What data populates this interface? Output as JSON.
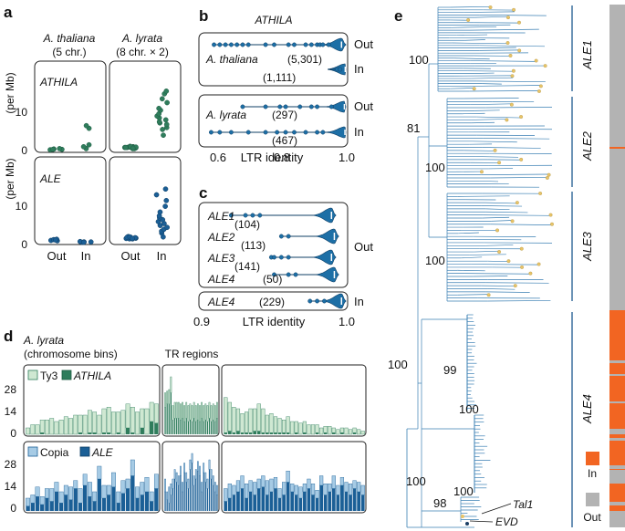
{
  "colors": {
    "dark_green": "#2f7d5c",
    "light_green": "#cfe8d2",
    "dark_blue": "#1b5f96",
    "light_blue": "#a6cbe5",
    "violin_blue": "#1d6fa6",
    "tree_blue": "#3a7fb3",
    "in_orange": "#f26522",
    "out_grey": "#b3b3b3"
  },
  "panel_a": {
    "label": "a",
    "col1_species": "A. thaliana",
    "col1_sub": "(5 chr.)",
    "col2_species": "A. lyrata",
    "col2_sub": "(8 chr. × 2)",
    "ylabel": "(per Mb)",
    "facet_top": "ATHILA",
    "facet_bottom": "ALE",
    "y_ticks_top": [
      "10",
      "0"
    ],
    "y_ticks_bottom": [
      "10",
      "0"
    ],
    "x_ticks": [
      "Out",
      "In"
    ]
  },
  "panel_b": {
    "label": "b",
    "title": "ATHILA",
    "species_top": "A. thaliana",
    "species_bottom": "A. lyrata",
    "counts": [
      "(5,301)",
      "(1,111)",
      "(297)",
      "(467)"
    ],
    "row_labels": [
      "Out",
      "In",
      "Out",
      "In"
    ],
    "x_ticks": [
      "0.6",
      "0.8",
      "1.0"
    ],
    "xlabel": "LTR identity"
  },
  "panel_c": {
    "label": "c",
    "families": [
      "ALE1",
      "ALE2",
      "ALE3",
      "ALE4"
    ],
    "counts": [
      "(104)",
      "(113)",
      "(141)",
      "(50)"
    ],
    "group_out": "Out",
    "in_family": "ALE4",
    "in_count": "(229)",
    "group_in": "In",
    "x_ticks": [
      "0.9",
      "1.0"
    ],
    "xlabel": "LTR identity"
  },
  "panel_d": {
    "label": "d",
    "species": "A. lyrata",
    "subtitle": "(chromosome bins)",
    "tr_label": "TR regions",
    "top_legend": [
      "Ty3",
      "ATHILA"
    ],
    "bottom_legend": [
      "Copia",
      "ALE"
    ],
    "y_ticks_top": [
      "28",
      "14",
      "0"
    ],
    "y_ticks_bottom": [
      "28",
      "14",
      "0"
    ]
  },
  "panel_e": {
    "label": "e",
    "clades": [
      "ALE1",
      "ALE2",
      "ALE3",
      "ALE4"
    ],
    "bootstrap": [
      "100",
      "81",
      "100",
      "100",
      "100",
      "99",
      "100",
      "100",
      "100",
      "98"
    ],
    "tips": [
      "Tal1",
      "EVD"
    ],
    "legend_in": "In",
    "legend_out": "Out"
  },
  "chart_data": [
    {
      "panel": "a",
      "type": "scatter",
      "facet": "ATHILA",
      "ylabel": "per Mb",
      "ylim": [
        0,
        17
      ],
      "categories": [
        "A. thaliana Out",
        "A. thaliana In",
        "A. lyrata Out",
        "A. lyrata In"
      ],
      "values": [
        [
          0.2,
          0.3,
          0.4,
          0.3,
          0.5
        ],
        [
          0.5,
          1.0,
          1.5,
          5.8,
          6.5
        ],
        [
          0.5,
          0.6,
          0.7,
          0.8,
          0.9,
          1.0,
          0.6,
          0.8,
          0.9,
          1.1,
          0.7,
          0.5,
          0.8,
          1.0,
          0.9,
          0.6
        ],
        [
          4.0,
          5.5,
          6.0,
          6.8,
          7.2,
          7.5,
          8.0,
          8.5,
          9.0,
          9.6,
          10.5,
          11.0,
          12.5,
          13.5,
          14.8,
          15.5
        ]
      ]
    },
    {
      "panel": "a",
      "type": "scatter",
      "facet": "ALE",
      "ylabel": "per Mb",
      "ylim": [
        0,
        17
      ],
      "categories": [
        "A. thaliana Out",
        "A. thaliana In",
        "A. lyrata Out",
        "A. lyrata In"
      ],
      "values": [
        [
          0.6,
          0.8,
          0.5,
          0.9,
          0.7
        ],
        [
          0.1,
          0.2,
          0.3,
          0.2,
          0.1
        ],
        [
          1.0,
          1.2,
          1.4,
          1.1,
          1.3,
          1.5,
          1.2,
          1.0,
          1.6,
          1.3,
          1.1,
          1.4,
          1.2,
          1.5,
          1.3,
          1.1
        ],
        [
          1.5,
          2.5,
          3.0,
          3.5,
          4.0,
          4.5,
          5.0,
          5.5,
          6.0,
          6.5,
          7.0,
          8.0,
          9.5,
          11.0,
          12.5,
          14.0
        ]
      ]
    },
    {
      "panel": "b",
      "type": "violin",
      "title": "ATHILA",
      "xlabel": "LTR identity",
      "xlim": [
        0.5,
        1.0
      ],
      "groups": [
        {
          "species": "A. thaliana",
          "group": "Out",
          "n": 5301,
          "outliers": [
            0.54,
            0.56,
            0.58,
            0.6,
            0.62,
            0.64,
            0.66,
            0.72,
            0.75,
            0.8,
            0.82,
            0.86,
            0.88,
            0.9,
            0.91,
            0.92,
            0.94
          ],
          "median": 0.985
        },
        {
          "species": "A. thaliana",
          "group": "In",
          "n": 1111,
          "outliers": [
            0.97,
            0.98
          ],
          "median": 0.998
        },
        {
          "species": "A. lyrata",
          "group": "Out",
          "n": 297,
          "outliers": [
            0.64,
            0.72,
            0.77,
            0.79,
            0.84,
            0.88,
            0.9,
            0.95
          ],
          "median": 0.995
        },
        {
          "species": "A. lyrata",
          "group": "In",
          "n": 467,
          "outliers": [
            0.53,
            0.56,
            0.6,
            0.66,
            0.72,
            0.76,
            0.79,
            0.82,
            0.86,
            0.9,
            0.92
          ],
          "median": 0.997
        }
      ]
    },
    {
      "panel": "c",
      "type": "violin",
      "xlabel": "LTR identity",
      "xlim": [
        0.9,
        1.0
      ],
      "groups": [
        {
          "family": "ALE1",
          "group": "Out",
          "n": 104,
          "outliers": [
            0.92,
            0.93,
            0.935,
            0.94
          ],
          "median": 0.99
        },
        {
          "family": "ALE2",
          "group": "Out",
          "n": 113,
          "outliers": [
            0.955,
            0.96
          ],
          "median": 0.992
        },
        {
          "family": "ALE3",
          "group": "Out",
          "n": 141,
          "outliers": [
            0.948,
            0.95,
            0.955,
            0.96
          ],
          "median": 0.99
        },
        {
          "family": "ALE4",
          "group": "Out",
          "n": 50,
          "outliers": [
            0.95,
            0.96,
            0.965
          ],
          "median": 0.992
        },
        {
          "family": "ALE4",
          "group": "In",
          "n": 229,
          "outliers": [
            0.975,
            0.98,
            0.985
          ],
          "median": 0.997
        }
      ]
    },
    {
      "panel": "d",
      "type": "bar",
      "stacked": true,
      "ylim": [
        0,
        40
      ],
      "series": [
        {
          "name": "Ty3",
          "values": [
            4,
            6,
            6,
            8,
            9,
            10,
            8,
            9,
            11,
            10,
            12,
            11,
            12,
            14,
            13,
            12,
            15,
            16,
            14,
            13,
            15,
            15,
            16,
            14,
            12,
            16,
            12,
            12,
            9,
            8,
            9,
            10,
            9,
            10,
            10,
            10,
            10,
            10,
            10,
            10,
            10,
            10,
            10,
            10,
            10,
            10,
            10,
            10,
            10,
            10,
            10,
            10,
            10,
            10,
            10,
            10,
            22,
            18,
            16,
            14,
            12,
            13,
            15,
            14,
            17,
            15,
            11,
            12,
            10,
            9,
            8,
            10,
            8,
            7,
            7,
            7,
            6,
            6,
            5,
            4,
            4,
            5,
            3,
            3,
            3,
            4,
            3,
            3,
            3,
            2
          ]
        },
        {
          "name": "ATHILA",
          "values": [
            0,
            0,
            0,
            1,
            0,
            0,
            0,
            0,
            0,
            0,
            0,
            1,
            0,
            1,
            1,
            0,
            1,
            1,
            0,
            1,
            0,
            4,
            1,
            0,
            4,
            0,
            8,
            7,
            17,
            19,
            19,
            26,
            9,
            10,
            10,
            10,
            9,
            10,
            8,
            10,
            8,
            9,
            8,
            10,
            8,
            9,
            8,
            10,
            8,
            9,
            8,
            10,
            8,
            9,
            8,
            10,
            1,
            2,
            1,
            2,
            1,
            1,
            1,
            2,
            2,
            1,
            1,
            1,
            1,
            1,
            1,
            1,
            0,
            1,
            0,
            1,
            0,
            0,
            1,
            0,
            1,
            0,
            1,
            0,
            1,
            0,
            0,
            1,
            0,
            0
          ]
        }
      ]
    },
    {
      "panel": "d",
      "type": "bar",
      "stacked": true,
      "ylim": [
        0,
        40
      ],
      "series": [
        {
          "name": "Copia",
          "values": [
            5,
            5,
            6,
            5,
            6,
            8,
            6,
            7,
            6,
            8,
            5,
            9,
            7,
            9,
            6,
            8,
            8,
            6,
            9,
            7,
            8,
            6,
            10,
            7,
            8,
            9,
            6,
            9,
            8,
            5,
            10,
            7,
            6,
            6,
            6,
            6,
            6,
            6,
            6,
            6,
            6,
            6,
            6,
            6,
            6,
            6,
            6,
            6,
            6,
            6,
            6,
            6,
            6,
            6,
            6,
            6,
            8,
            9,
            6,
            7,
            8,
            9,
            7,
            8,
            6,
            7,
            9,
            8,
            7,
            6,
            8,
            7,
            5,
            6,
            7,
            5,
            6,
            7,
            5,
            6,
            7,
            5,
            8,
            6,
            5,
            6,
            7,
            5,
            6,
            6
          ]
        },
        {
          "name": "ALE",
          "values": [
            3,
            5,
            9,
            4,
            8,
            6,
            12,
            5,
            10,
            7,
            14,
            5,
            16,
            9,
            6,
            20,
            8,
            10,
            15,
            5,
            11,
            14,
            22,
            8,
            10,
            12,
            6,
            14,
            12,
            7,
            5,
            10,
            14,
            20,
            18,
            16,
            22,
            12,
            24,
            18,
            14,
            26,
            30,
            16,
            20,
            25,
            22,
            12,
            24,
            18,
            14,
            26,
            20,
            16,
            12,
            10,
            6,
            8,
            10,
            12,
            14,
            8,
            12,
            10,
            14,
            15,
            10,
            12,
            14,
            8,
            10,
            18,
            12,
            10,
            8,
            12,
            14,
            10,
            8,
            16,
            10,
            12,
            14,
            10,
            16,
            12,
            10,
            14,
            12,
            10
          ]
        }
      ]
    }
  ]
}
